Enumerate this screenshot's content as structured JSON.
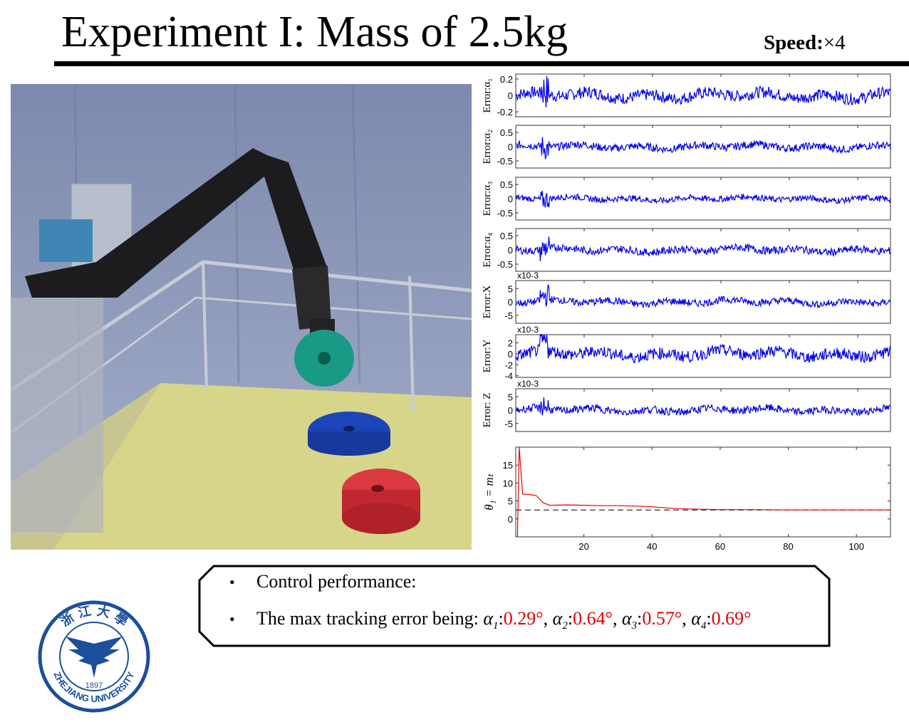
{
  "title": "Experiment I: Mass of 2.5kg",
  "speed": {
    "label": "Speed:",
    "value": "×4"
  },
  "photo": {
    "description_icon": "robot-arm-photo"
  },
  "bullets": {
    "item1": "Control performance:",
    "item2_prefix": "The max tracking error being: ",
    "errors": [
      {
        "symbol": "α",
        "sub": "1",
        "value": "0.29°",
        "sep": ", "
      },
      {
        "symbol": "α",
        "sub": "2",
        "value": "0.64°",
        "sep": ", "
      },
      {
        "symbol": "α",
        "sub": "3",
        "value": "0.57°",
        "sep": ", "
      },
      {
        "symbol": "α",
        "sub": "4",
        "value": "0.69°",
        "sep": ""
      }
    ]
  },
  "logo": {
    "text_top": "浙 江 大 學",
    "year": "1897",
    "text_bottom": "ZHEJIANG UNIVERSITY"
  },
  "colors": {
    "error_series": "#0000ee",
    "theta_series": "#ee0000",
    "reference_line": "#000000",
    "highlight": "#e00000"
  },
  "chart_data": [
    {
      "type": "line",
      "ylabel": "Error:α₁",
      "yticks": [
        "0.2",
        "0",
        "-0.2"
      ],
      "yvals": [
        0.2,
        0,
        -0.2
      ],
      "ylim": [
        -0.26,
        0.26
      ],
      "amplitude": 0.08,
      "multiplier": ""
    },
    {
      "type": "line",
      "ylabel": "Error:α₂",
      "yticks": [
        "0.5",
        "0",
        "-0.5"
      ],
      "yvals": [
        0.5,
        0,
        -0.5
      ],
      "ylim": [
        -0.75,
        0.75
      ],
      "amplitude": 0.15,
      "multiplier": ""
    },
    {
      "type": "line",
      "ylabel": "Error:α₃",
      "yticks": [
        "0.5",
        "0",
        "-0.5"
      ],
      "yvals": [
        0.5,
        0,
        -0.5
      ],
      "ylim": [
        -0.75,
        0.75
      ],
      "amplitude": 0.12,
      "multiplier": ""
    },
    {
      "type": "line",
      "ylabel": "Error:α₄",
      "yticks": [
        "0.5",
        "0",
        "-0.5"
      ],
      "yvals": [
        0.5,
        0,
        -0.5
      ],
      "ylim": [
        -0.75,
        0.75
      ],
      "amplitude": 0.15,
      "multiplier": ""
    },
    {
      "type": "line",
      "ylabel": "Error:X",
      "yticks": [
        "5",
        "0",
        "-5"
      ],
      "yvals": [
        5,
        0,
        -5
      ],
      "ylim": [
        -8,
        8
      ],
      "amplitude": 1.5,
      "multiplier": "x10-3"
    },
    {
      "type": "line",
      "ylabel": "Error:Y",
      "yticks": [
        "2",
        "0",
        "-2",
        "-4"
      ],
      "yvals": [
        2,
        0,
        -2,
        -4
      ],
      "ylim": [
        -4.3,
        3.5
      ],
      "amplitude": 1.2,
      "multiplier": "x10-3"
    },
    {
      "type": "line",
      "ylabel": "Error: Z",
      "yticks": [
        "5",
        "0",
        "-5"
      ],
      "yvals": [
        5,
        0,
        -5
      ],
      "ylim": [
        -8,
        8
      ],
      "amplitude": 1.6,
      "multiplier": "x10-3"
    },
    {
      "type": "line",
      "ylabel": "θ₁ = mₜ",
      "yticks": [
        "15",
        "10",
        "5",
        "0"
      ],
      "yvals": [
        15,
        10,
        5,
        0
      ],
      "ylim": [
        -5,
        20
      ],
      "xlim": [
        0,
        110
      ],
      "xticks": [
        20,
        40,
        60,
        80,
        100
      ],
      "reference": 2.5,
      "series": [
        {
          "x": [
            0.5,
            1,
            2,
            3,
            4,
            6,
            8,
            10,
            15,
            20,
            25,
            30,
            35,
            40,
            45,
            50,
            60,
            70,
            80,
            90,
            100,
            110
          ],
          "y": [
            -5,
            20,
            7,
            6.8,
            6.8,
            6.5,
            4.5,
            3.8,
            3.9,
            3.8,
            3.7,
            3.7,
            3.6,
            3.4,
            3.0,
            2.8,
            2.6,
            2.6,
            2.5,
            2.5,
            2.5,
            2.5
          ]
        }
      ]
    }
  ]
}
